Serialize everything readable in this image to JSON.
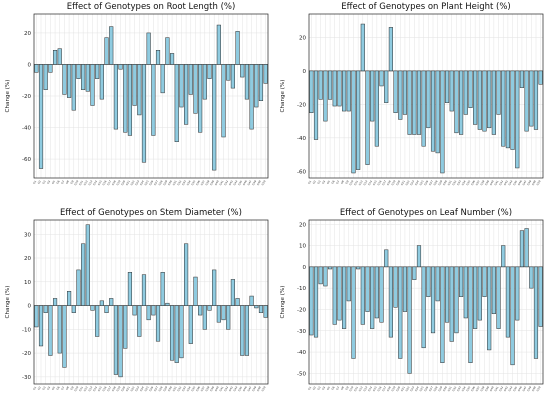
{
  "chart_data": [
    {
      "type": "bar",
      "title": "Effect of Genotypes on Root Length (%)",
      "ylabel": "Change (%)",
      "xlabel": "",
      "ylim": [
        -72,
        32
      ],
      "yticks": [
        -60,
        -40,
        -20,
        0,
        20
      ],
      "grid": true,
      "bar_color": "#8fcbe0",
      "categories": [
        "G1",
        "G2",
        "G3",
        "G4",
        "G5",
        "G6",
        "G7",
        "G8",
        "G9",
        "G10",
        "G11",
        "G12",
        "G13",
        "G14",
        "G15",
        "G16",
        "G17",
        "G18",
        "G19",
        "G20",
        "G21",
        "G22",
        "G23",
        "G24",
        "G25",
        "G26",
        "G27",
        "G28",
        "G29",
        "G30",
        "G31",
        "G32",
        "G33",
        "G34",
        "G35",
        "G36",
        "G37",
        "G38",
        "G39",
        "G40",
        "G41",
        "G42",
        "G43",
        "G44",
        "G45",
        "G46",
        "G47",
        "G48",
        "G49",
        "G50"
      ],
      "values": [
        -5,
        -66,
        -16,
        -5,
        9,
        10,
        -19,
        -21,
        -29,
        -9,
        -16,
        -17,
        -26,
        -9,
        -22,
        17,
        24,
        -41,
        -3,
        -43,
        -45,
        -26,
        -32,
        -62,
        20,
        -45,
        9,
        -18,
        17,
        7,
        -49,
        -27,
        -38,
        -19,
        -31,
        -43,
        -22,
        -9,
        -67,
        25,
        -46,
        -10,
        -15,
        21,
        -8,
        -22,
        -41,
        -27,
        -23,
        -12
      ]
    },
    {
      "type": "bar",
      "title": "Effect of Genotypes on Plant Height (%)",
      "ylabel": "Change (%)",
      "xlabel": "",
      "ylim": [
        -64,
        34
      ],
      "yticks": [
        -60,
        -40,
        -20,
        0,
        20
      ],
      "grid": true,
      "bar_color": "#8fcbe0",
      "categories": [
        "G1",
        "G2",
        "G3",
        "G4",
        "G5",
        "G6",
        "G7",
        "G8",
        "G9",
        "G10",
        "G11",
        "G12",
        "G13",
        "G14",
        "G15",
        "G16",
        "G17",
        "G18",
        "G19",
        "G20",
        "G21",
        "G22",
        "G23",
        "G24",
        "G25",
        "G26",
        "G27",
        "G28",
        "G29",
        "G30",
        "G31",
        "G32",
        "G33",
        "G34",
        "G35",
        "G36",
        "G37",
        "G38",
        "G39",
        "G40",
        "G41",
        "G42",
        "G43",
        "G44",
        "G45",
        "G46",
        "G47",
        "G48",
        "G49",
        "G50"
      ],
      "values": [
        -25,
        -41,
        -17,
        -30,
        -17,
        -21,
        -21,
        -24,
        -24,
        -61,
        -59,
        28,
        -56,
        -30,
        -45,
        -9,
        -19,
        26,
        -25,
        -29,
        -26,
        -38,
        -38,
        -38,
        -45,
        -34,
        -48,
        -49,
        -61,
        -19,
        -24,
        -37,
        -38,
        -26,
        -22,
        -32,
        -35,
        -36,
        -34,
        -38,
        -26,
        -45,
        -46,
        -47,
        -58,
        -10,
        -36,
        -33,
        -35,
        -8
      ]
    },
    {
      "type": "bar",
      "title": "Effect of Genotypes on Stem Diameter (%)",
      "ylabel": "Change (%)",
      "xlabel": "",
      "ylim": [
        -33,
        36
      ],
      "yticks": [
        -30,
        -20,
        -10,
        0,
        10,
        20,
        30
      ],
      "grid": true,
      "bar_color": "#8fcbe0",
      "categories": [
        "G1",
        "G2",
        "G3",
        "G4",
        "G5",
        "G6",
        "G7",
        "G8",
        "G9",
        "G10",
        "G11",
        "G12",
        "G13",
        "G14",
        "G15",
        "G16",
        "G17",
        "G18",
        "G19",
        "G20",
        "G21",
        "G22",
        "G23",
        "G24",
        "G25",
        "G26",
        "G27",
        "G28",
        "G29",
        "G30",
        "G31",
        "G32",
        "G33",
        "G34",
        "G35",
        "G36",
        "G37",
        "G38",
        "G39",
        "G40",
        "G41",
        "G42",
        "G43",
        "G44",
        "G45",
        "G46",
        "G47",
        "G48",
        "G49",
        "G50"
      ],
      "values": [
        -9,
        -17,
        -3,
        -21,
        3,
        -20,
        -26,
        6,
        -3,
        15,
        26,
        34,
        -2,
        -13,
        2,
        -3,
        3,
        -29,
        -30,
        -18,
        14,
        -4,
        -13,
        13,
        -6,
        -4,
        -15,
        14,
        1,
        -23,
        -24,
        -22,
        26,
        -16,
        12,
        -4,
        -10,
        -2,
        15,
        -7,
        -6,
        -10,
        11,
        3,
        -21,
        -21,
        4,
        -1,
        -3,
        -5
      ]
    },
    {
      "type": "bar",
      "title": "Effect of Genotypes on Leaf Number (%)",
      "ylabel": "Change (%)",
      "xlabel": "",
      "ylim": [
        -55,
        22
      ],
      "yticks": [
        -50,
        -40,
        -30,
        -20,
        -10,
        0,
        10,
        20
      ],
      "grid": true,
      "bar_color": "#8fcbe0",
      "categories": [
        "G1",
        "G2",
        "G3",
        "G4",
        "G5",
        "G6",
        "G7",
        "G8",
        "G9",
        "G10",
        "G11",
        "G12",
        "G13",
        "G14",
        "G15",
        "G16",
        "G17",
        "G18",
        "G19",
        "G20",
        "G21",
        "G22",
        "G23",
        "G24",
        "G25",
        "G26",
        "G27",
        "G28",
        "G29",
        "G30",
        "G31",
        "G32",
        "G33",
        "G34",
        "G35",
        "G36",
        "G37",
        "G38",
        "G39",
        "G40",
        "G41",
        "G42",
        "G43",
        "G44",
        "G45",
        "G46",
        "G47",
        "G48",
        "G49",
        "G50"
      ],
      "values": [
        -32,
        -33,
        -8,
        -9,
        -1,
        -27,
        -25,
        -29,
        -16,
        -43,
        -1,
        -27,
        -21,
        -29,
        -24,
        -26,
        8,
        -33,
        -19,
        -43,
        -21,
        -50,
        -6,
        10,
        -38,
        -14,
        -31,
        -16,
        -45,
        -26,
        -35,
        -31,
        -14,
        -24,
        -45,
        -29,
        -25,
        -14,
        -39,
        -22,
        -29,
        10,
        -33,
        -46,
        -25,
        17,
        18,
        -10,
        -43,
        -28
      ]
    }
  ]
}
